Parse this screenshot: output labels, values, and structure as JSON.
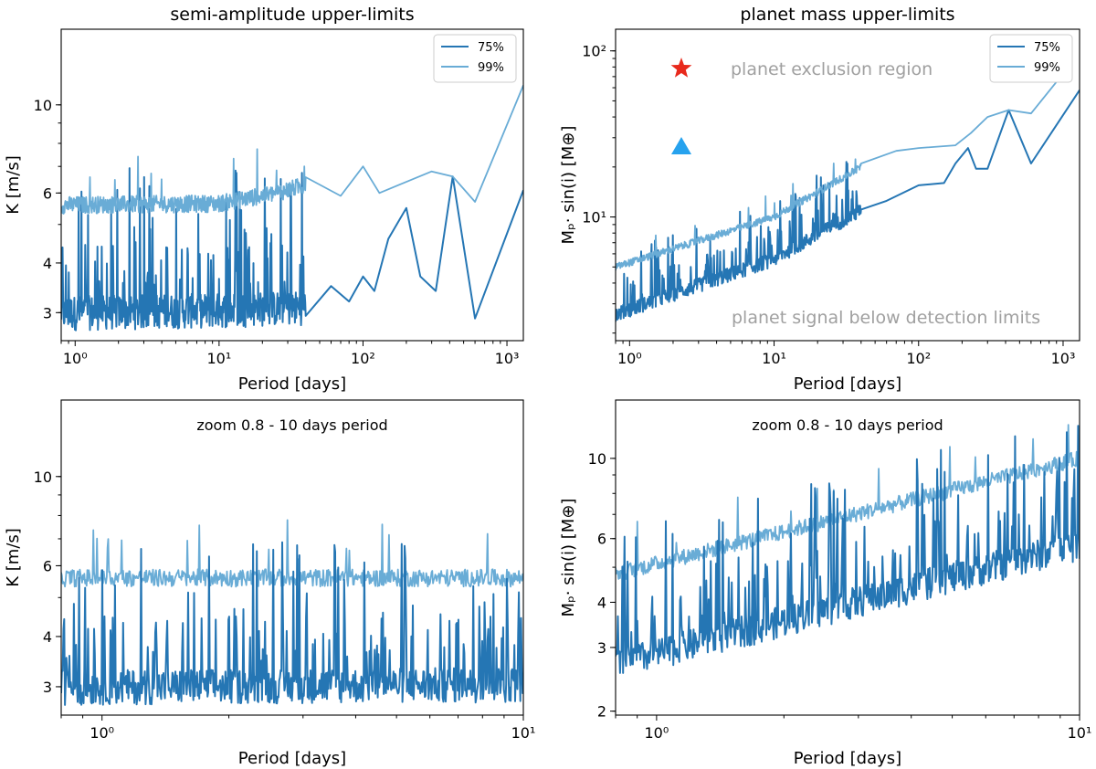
{
  "figure": {
    "colors": {
      "p75": "#2576b4",
      "p99": "#69acd6",
      "star": "#e8291c",
      "triangle": "#26a2ee",
      "region_text": "#a0a0a0"
    }
  },
  "chart_data": [
    {
      "type": "line",
      "title": "semi-amplitude upper-limits",
      "xlabel": "Period [days]",
      "ylabel": "K [m/s]",
      "xscale": "log",
      "yscale": "log",
      "xlim": [
        0.8,
        1300
      ],
      "ylim": [
        2.55,
        15.5
      ],
      "xticks": [
        1,
        10,
        100,
        1000
      ],
      "xtick_labels": [
        "10⁰",
        "10¹",
        "10²",
        "10³"
      ],
      "yticks": [
        3,
        4,
        6,
        10
      ],
      "ytick_labels": [
        "3",
        "4",
        "6",
        "10"
      ],
      "legend": {
        "location": "upper right",
        "entries": [
          "75%",
          "99%"
        ]
      },
      "annotation": "",
      "series": [
        {
          "name": "75%",
          "style": "noisy",
          "base_start": 3.0,
          "base_end": 3.05,
          "points": [
            [
              0.8,
              3.0
            ],
            [
              10,
              3.05
            ],
            [
              40,
              3.1
            ],
            [
              60,
              3.5
            ],
            [
              80,
              3.2
            ],
            [
              100,
              3.7
            ],
            [
              120,
              3.4
            ],
            [
              150,
              4.6
            ],
            [
              200,
              5.5
            ],
            [
              250,
              3.7
            ],
            [
              320,
              3.4
            ],
            [
              420,
              6.6
            ],
            [
              600,
              2.9
            ],
            [
              1300,
              6.1
            ]
          ]
        },
        {
          "name": "99%",
          "style": "noisy",
          "base_start": 5.6,
          "base_end": 5.65,
          "points": [
            [
              0.8,
              5.6
            ],
            [
              10,
              5.65
            ],
            [
              25,
              6.0
            ],
            [
              40,
              6.3
            ],
            [
              70,
              5.9
            ],
            [
              100,
              7.0
            ],
            [
              130,
              6.0
            ],
            [
              180,
              6.3
            ],
            [
              300,
              6.8
            ],
            [
              420,
              6.6
            ],
            [
              600,
              5.7
            ],
            [
              1300,
              11.2
            ]
          ]
        }
      ]
    },
    {
      "type": "line",
      "title": "planet mass upper-limits",
      "xlabel": "Period [days]",
      "ylabel": "Mₚ· sin(i) [M⊕]",
      "xscale": "log",
      "yscale": "log",
      "xlim": [
        0.8,
        1300
      ],
      "ylim": [
        1.8,
        135
      ],
      "xticks": [
        1,
        10,
        100,
        1000
      ],
      "xtick_labels": [
        "10⁰",
        "10¹",
        "10²",
        "10³"
      ],
      "yticks": [
        10,
        100
      ],
      "ytick_labels": [
        "10¹",
        "10²"
      ],
      "legend": {
        "location": "upper right",
        "entries": [
          "75%",
          "99%"
        ]
      },
      "annotation": "",
      "region_labels": {
        "exclusion": "planet exclusion region",
        "below": "planet signal below detection limits"
      },
      "series": [
        {
          "name": "75%",
          "style": "noisy",
          "base_start": 2.8,
          "base_end": 6.2,
          "points": [
            [
              0.8,
              2.6
            ],
            [
              10,
              5.6
            ],
            [
              40,
              11.0
            ],
            [
              60,
              12.5
            ],
            [
              100,
              15.5
            ],
            [
              150,
              16.0
            ],
            [
              180,
              21.0
            ],
            [
              220,
              26.0
            ],
            [
              250,
              19.5
            ],
            [
              300,
              19.5
            ],
            [
              420,
              44.0
            ],
            [
              600,
              21.0
            ],
            [
              1300,
              58.0
            ]
          ]
        },
        {
          "name": "99%",
          "style": "noisy",
          "base_start": 5.2,
          "base_end": 11.2,
          "points": [
            [
              0.8,
              5.0
            ],
            [
              10,
              10.0
            ],
            [
              40,
              20.0
            ],
            [
              70,
              25.0
            ],
            [
              100,
              26.0
            ],
            [
              180,
              27.0
            ],
            [
              230,
              32.0
            ],
            [
              300,
              40.0
            ],
            [
              420,
              44.0
            ],
            [
              600,
              42.0
            ],
            [
              900,
              65.0
            ]
          ]
        }
      ]
    },
    {
      "type": "line",
      "title": "",
      "xlabel": "Period [days]",
      "ylabel": "K [m/s]",
      "xscale": "log",
      "yscale": "log",
      "xlim": [
        0.8,
        10
      ],
      "ylim": [
        2.55,
        15.5
      ],
      "xticks": [
        1,
        10
      ],
      "xtick_labels": [
        "10⁰",
        "10¹"
      ],
      "yticks": [
        3,
        4,
        6,
        10
      ],
      "ytick_labels": [
        "3",
        "4",
        "6",
        "10"
      ],
      "legend": null,
      "annotation": "zoom 0.8 - 10 days period",
      "series": [
        {
          "name": "75%",
          "style": "noisy",
          "base_start": 3.0,
          "base_end": 3.05,
          "points": [
            [
              0.8,
              3.0
            ],
            [
              10,
              3.05
            ]
          ]
        },
        {
          "name": "99%",
          "style": "noisy",
          "base_start": 5.6,
          "base_end": 5.6,
          "points": [
            [
              0.8,
              5.6
            ],
            [
              10,
              5.6
            ]
          ]
        }
      ]
    },
    {
      "type": "line",
      "title": "",
      "xlabel": "Period [days]",
      "ylabel": "Mₚ· sin(i) [M⊕]",
      "xscale": "log",
      "yscale": "log",
      "xlim": [
        0.8,
        10
      ],
      "ylim": [
        1.95,
        14.5
      ],
      "xticks": [
        1,
        10
      ],
      "xtick_labels": [
        "10⁰",
        "10¹"
      ],
      "yticks": [
        2,
        3,
        4,
        6,
        10
      ],
      "ytick_labels": [
        "2",
        "3",
        "4",
        "6",
        "10"
      ],
      "legend": null,
      "annotation": "zoom 0.8 - 10 days period",
      "series": [
        {
          "name": "75%",
          "style": "noisy",
          "base_start": 2.7,
          "base_end": 5.8,
          "points": [
            [
              0.8,
              2.7
            ],
            [
              10,
              5.8
            ]
          ]
        },
        {
          "name": "99%",
          "style": "noisy",
          "base_start": 4.8,
          "base_end": 10.0,
          "points": [
            [
              0.8,
              4.8
            ],
            [
              10,
              10.0
            ]
          ]
        }
      ]
    }
  ]
}
